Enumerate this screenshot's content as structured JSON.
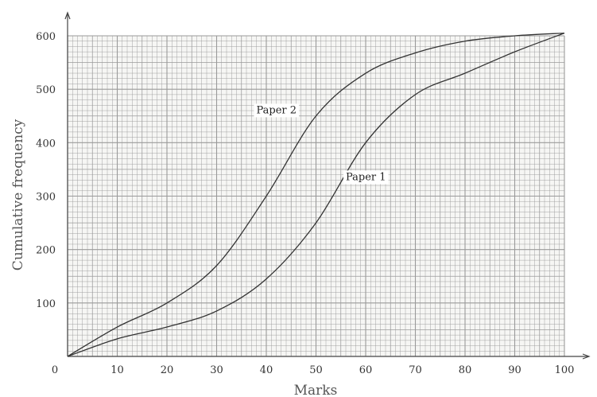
{
  "chart_data": {
    "type": "line",
    "title": "",
    "xlabel": "Marks",
    "ylabel": "Cumulative frequency",
    "xlim": [
      0,
      100
    ],
    "ylim": [
      0,
      600
    ],
    "x_ticks": [
      0,
      10,
      20,
      30,
      40,
      50,
      60,
      70,
      80,
      90,
      100
    ],
    "x_tick_labels": [
      "0",
      "10",
      "20",
      "30",
      "40",
      "50",
      "60",
      "70",
      "80",
      "90",
      "100"
    ],
    "y_ticks": [
      100,
      200,
      300,
      400,
      500,
      600
    ],
    "y_tick_labels": [
      "100",
      "200",
      "300",
      "400",
      "500",
      "600"
    ],
    "grid": true,
    "grid_color": "#9a9a9a",
    "series": [
      {
        "name": "Paper 1",
        "color": "#333333",
        "x": [
          0,
          10,
          20,
          30,
          40,
          50,
          60,
          70,
          80,
          90,
          100
        ],
        "y": [
          0,
          33,
          55,
          85,
          145,
          250,
          400,
          490,
          530,
          570,
          605
        ]
      },
      {
        "name": "Paper 2",
        "color": "#333333",
        "x": [
          0,
          10,
          20,
          30,
          40,
          50,
          60,
          70,
          80,
          90,
          100
        ],
        "y": [
          0,
          55,
          100,
          170,
          300,
          450,
          530,
          568,
          590,
          600,
          605
        ]
      }
    ],
    "annotations": [
      {
        "text": "Paper 2",
        "x": 38,
        "y": 455
      },
      {
        "text": "Paper 1",
        "x": 56,
        "y": 330
      }
    ]
  }
}
